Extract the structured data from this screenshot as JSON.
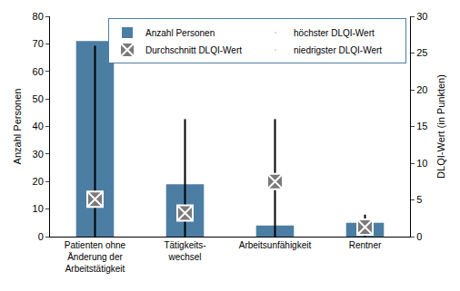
{
  "chart_data": {
    "type": "bar",
    "categories": [
      "Patienten ohne\nÄnderung der\nArbeitstätigkeit",
      "Tätigkeits-\nwechsel",
      "Arbeitsunfähigkeit",
      "Rentner"
    ],
    "y_label": "Anzahl Personen",
    "y2_label": "DLQI-Wert (in Punkten)",
    "ylim": [
      0,
      80
    ],
    "yticks": [
      0,
      10,
      20,
      30,
      40,
      50,
      60,
      70,
      80
    ],
    "y2lim": [
      0,
      30
    ],
    "y2ticks": [
      0,
      5,
      10,
      15,
      20,
      25,
      30
    ],
    "grid": false,
    "legend": "top-right",
    "series": [
      {
        "name": "Anzahl Personen",
        "type": "bar",
        "color": "#4c7ea3",
        "values": [
          71,
          19,
          4,
          5
        ]
      },
      {
        "name": "höchster DLQI-Wert",
        "type": "line",
        "axis": "y2",
        "color": "#000000",
        "values": [
          26,
          16,
          16,
          3
        ]
      },
      {
        "name": "Durchschnitt DLQI-Wert",
        "type": "scatter",
        "axis": "y2",
        "marker": "square-x",
        "color": "#7a7a7a",
        "values": [
          5.1,
          3.2,
          7.5,
          1.3
        ]
      },
      {
        "name": "niedrigster DLQI-Wert",
        "type": "line",
        "axis": "y2",
        "color": "#000000",
        "values": [
          0,
          0,
          0,
          0
        ]
      }
    ]
  }
}
